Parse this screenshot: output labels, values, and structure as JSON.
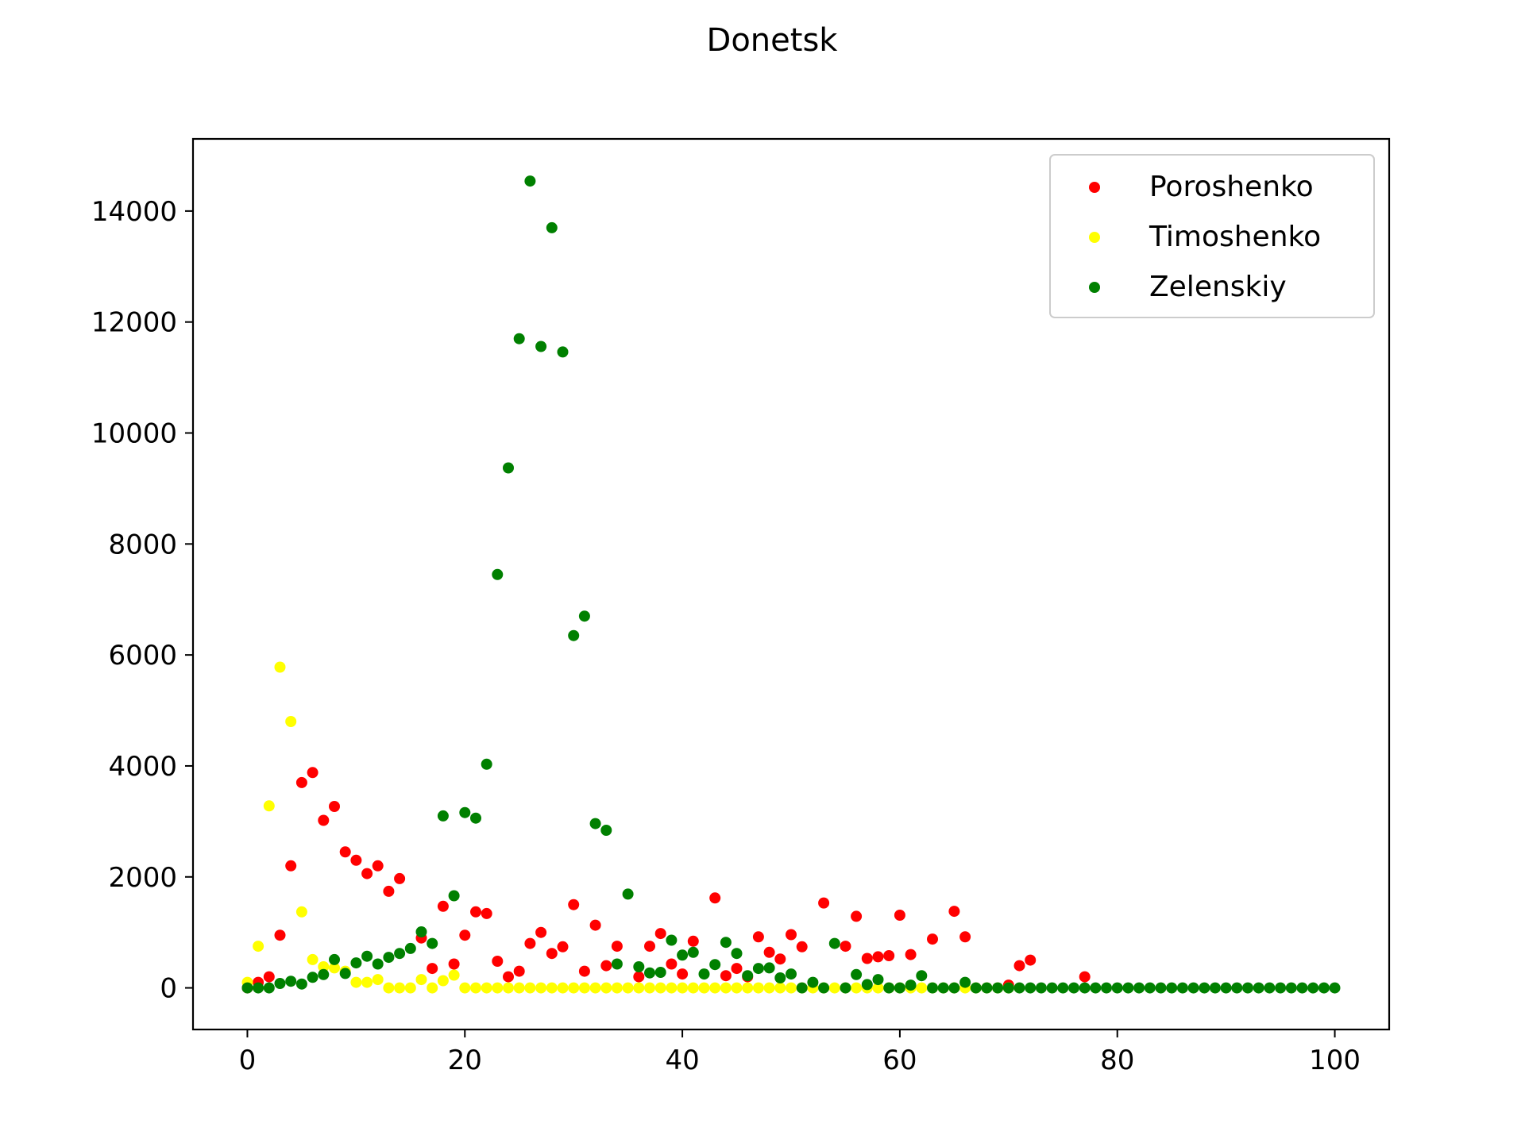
{
  "chart_data": {
    "type": "scatter",
    "title": "Donetsk",
    "xlabel": "",
    "ylabel": "",
    "xlim": [
      -5,
      105
    ],
    "ylim": [
      -750,
      15300
    ],
    "xticks": [
      0,
      20,
      40,
      60,
      80,
      100
    ],
    "yticks": [
      0,
      2000,
      4000,
      6000,
      8000,
      10000,
      12000,
      14000
    ],
    "grid": false,
    "legend_position": "top-right",
    "series": [
      {
        "name": "Poroshenko",
        "color": "#ff0000",
        "points": [
          [
            0,
            0
          ],
          [
            1,
            100
          ],
          [
            2,
            200
          ],
          [
            3,
            950
          ],
          [
            4,
            2200
          ],
          [
            5,
            3700
          ],
          [
            6,
            3880
          ],
          [
            7,
            3020
          ],
          [
            8,
            3270
          ],
          [
            9,
            2450
          ],
          [
            10,
            2300
          ],
          [
            11,
            2060
          ],
          [
            12,
            2200
          ],
          [
            13,
            1740
          ],
          [
            14,
            1970
          ],
          [
            16,
            900
          ],
          [
            17,
            350
          ],
          [
            18,
            1470
          ],
          [
            19,
            430
          ],
          [
            20,
            950
          ],
          [
            21,
            1370
          ],
          [
            22,
            1340
          ],
          [
            23,
            480
          ],
          [
            24,
            200
          ],
          [
            25,
            300
          ],
          [
            26,
            800
          ],
          [
            27,
            1000
          ],
          [
            28,
            620
          ],
          [
            29,
            740
          ],
          [
            30,
            1500
          ],
          [
            31,
            300
          ],
          [
            32,
            1130
          ],
          [
            33,
            400
          ],
          [
            34,
            750
          ],
          [
            36,
            200
          ],
          [
            37,
            750
          ],
          [
            38,
            980
          ],
          [
            39,
            430
          ],
          [
            40,
            250
          ],
          [
            41,
            840
          ],
          [
            43,
            1620
          ],
          [
            44,
            220
          ],
          [
            45,
            350
          ],
          [
            46,
            200
          ],
          [
            47,
            920
          ],
          [
            48,
            640
          ],
          [
            49,
            520
          ],
          [
            50,
            960
          ],
          [
            51,
            740
          ],
          [
            53,
            1530
          ],
          [
            55,
            750
          ],
          [
            56,
            1290
          ],
          [
            57,
            530
          ],
          [
            58,
            560
          ],
          [
            59,
            580
          ],
          [
            60,
            1310
          ],
          [
            61,
            600
          ],
          [
            63,
            880
          ],
          [
            65,
            1380
          ],
          [
            66,
            920
          ],
          [
            70,
            50
          ],
          [
            71,
            400
          ],
          [
            72,
            500
          ],
          [
            77,
            200
          ]
        ]
      },
      {
        "name": "Timoshenko",
        "color": "#ffff00",
        "points": [
          [
            0,
            100
          ],
          [
            1,
            750
          ],
          [
            2,
            3280
          ],
          [
            3,
            5780
          ],
          [
            4,
            4800
          ],
          [
            5,
            1370
          ],
          [
            6,
            510
          ],
          [
            7,
            380
          ],
          [
            8,
            360
          ],
          [
            9,
            300
          ],
          [
            10,
            100
          ],
          [
            11,
            100
          ],
          [
            12,
            150
          ],
          [
            13,
            0
          ],
          [
            14,
            0
          ],
          [
            15,
            0
          ],
          [
            16,
            150
          ],
          [
            17,
            0
          ],
          [
            18,
            130
          ],
          [
            19,
            230
          ],
          [
            20,
            0
          ],
          [
            21,
            0
          ],
          [
            22,
            0
          ],
          [
            23,
            0
          ],
          [
            24,
            0
          ],
          [
            25,
            0
          ],
          [
            26,
            0
          ],
          [
            27,
            0
          ],
          [
            28,
            0
          ],
          [
            29,
            0
          ],
          [
            30,
            0
          ],
          [
            31,
            0
          ],
          [
            32,
            0
          ],
          [
            33,
            0
          ],
          [
            34,
            0
          ],
          [
            35,
            0
          ],
          [
            36,
            0
          ],
          [
            37,
            0
          ],
          [
            38,
            0
          ],
          [
            39,
            0
          ],
          [
            40,
            0
          ],
          [
            41,
            0
          ],
          [
            42,
            0
          ],
          [
            43,
            0
          ],
          [
            44,
            0
          ],
          [
            45,
            0
          ],
          [
            46,
            0
          ],
          [
            47,
            0
          ],
          [
            48,
            0
          ],
          [
            49,
            0
          ],
          [
            50,
            0
          ],
          [
            51,
            0
          ],
          [
            52,
            0
          ],
          [
            53,
            0
          ],
          [
            54,
            0
          ],
          [
            55,
            0
          ],
          [
            56,
            0
          ],
          [
            57,
            0
          ],
          [
            58,
            0
          ],
          [
            59,
            0
          ],
          [
            60,
            0
          ],
          [
            61,
            0
          ],
          [
            62,
            0
          ],
          [
            63,
            0
          ],
          [
            64,
            0
          ],
          [
            65,
            0
          ],
          [
            66,
            0
          ],
          [
            67,
            0
          ],
          [
            68,
            0
          ],
          [
            69,
            0
          ],
          [
            70,
            0
          ]
        ]
      },
      {
        "name": "Zelenskiy",
        "color": "#008000",
        "points": [
          [
            0,
            0
          ],
          [
            1,
            0
          ],
          [
            2,
            0
          ],
          [
            3,
            80
          ],
          [
            4,
            120
          ],
          [
            5,
            70
          ],
          [
            6,
            190
          ],
          [
            7,
            240
          ],
          [
            8,
            510
          ],
          [
            9,
            260
          ],
          [
            10,
            450
          ],
          [
            11,
            570
          ],
          [
            12,
            430
          ],
          [
            13,
            550
          ],
          [
            14,
            620
          ],
          [
            15,
            710
          ],
          [
            16,
            1010
          ],
          [
            17,
            800
          ],
          [
            18,
            3100
          ],
          [
            19,
            1660
          ],
          [
            20,
            3160
          ],
          [
            21,
            3060
          ],
          [
            22,
            4030
          ],
          [
            23,
            7450
          ],
          [
            24,
            9370
          ],
          [
            25,
            11700
          ],
          [
            26,
            14540
          ],
          [
            27,
            11560
          ],
          [
            28,
            13700
          ],
          [
            29,
            11460
          ],
          [
            30,
            6350
          ],
          [
            31,
            6700
          ],
          [
            32,
            2960
          ],
          [
            33,
            2840
          ],
          [
            34,
            430
          ],
          [
            35,
            1690
          ],
          [
            36,
            380
          ],
          [
            37,
            270
          ],
          [
            38,
            280
          ],
          [
            39,
            860
          ],
          [
            40,
            590
          ],
          [
            41,
            640
          ],
          [
            42,
            250
          ],
          [
            43,
            420
          ],
          [
            44,
            820
          ],
          [
            45,
            620
          ],
          [
            46,
            220
          ],
          [
            47,
            350
          ],
          [
            48,
            360
          ],
          [
            49,
            180
          ],
          [
            50,
            250
          ],
          [
            51,
            0
          ],
          [
            52,
            100
          ],
          [
            53,
            0
          ],
          [
            54,
            800
          ],
          [
            55,
            0
          ],
          [
            56,
            240
          ],
          [
            57,
            60
          ],
          [
            58,
            150
          ],
          [
            59,
            0
          ],
          [
            60,
            0
          ],
          [
            61,
            50
          ],
          [
            62,
            220
          ],
          [
            63,
            0
          ],
          [
            64,
            0
          ],
          [
            65,
            0
          ],
          [
            66,
            100
          ],
          [
            67,
            0
          ],
          [
            68,
            0
          ],
          [
            69,
            0
          ],
          [
            70,
            0
          ],
          [
            71,
            0
          ],
          [
            72,
            0
          ],
          [
            73,
            0
          ],
          [
            74,
            0
          ],
          [
            75,
            0
          ],
          [
            76,
            0
          ],
          [
            77,
            0
          ],
          [
            78,
            0
          ],
          [
            79,
            0
          ],
          [
            80,
            0
          ],
          [
            81,
            0
          ],
          [
            82,
            0
          ],
          [
            83,
            0
          ],
          [
            84,
            0
          ],
          [
            85,
            0
          ],
          [
            86,
            0
          ],
          [
            87,
            0
          ],
          [
            88,
            0
          ],
          [
            89,
            0
          ],
          [
            90,
            0
          ],
          [
            91,
            0
          ],
          [
            92,
            0
          ],
          [
            93,
            0
          ],
          [
            94,
            0
          ],
          [
            95,
            0
          ],
          [
            96,
            0
          ],
          [
            97,
            0
          ],
          [
            98,
            0
          ],
          [
            99,
            0
          ],
          [
            100,
            0
          ]
        ]
      }
    ]
  }
}
